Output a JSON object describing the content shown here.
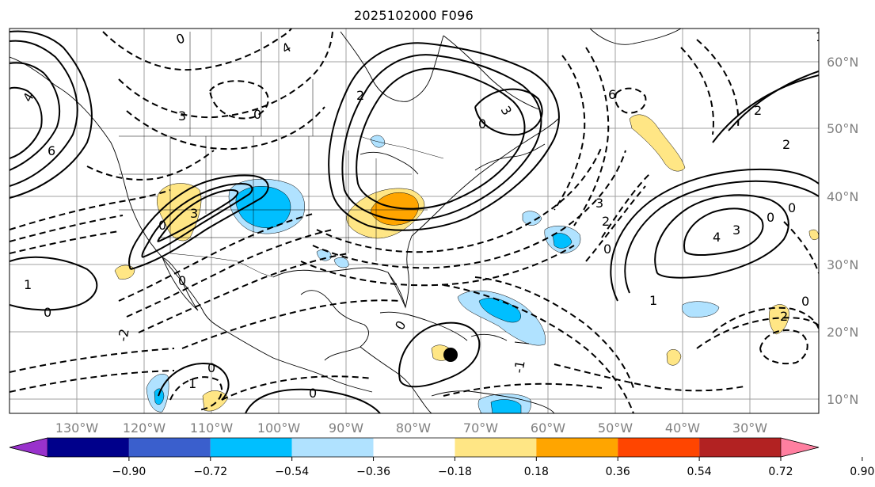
{
  "title": "2025102000 F096",
  "map": {
    "lon_labels": [
      "130°W",
      "120°W",
      "110°W",
      "100°W",
      "90°W",
      "80°W",
      "70°W",
      "60°W",
      "50°W",
      "40°W",
      "30°W"
    ],
    "lat_labels": [
      "60°N",
      "50°N",
      "40°N",
      "30°N",
      "20°N",
      "10°N"
    ],
    "label_color": "#808080",
    "marker": {
      "name": "storm-center-marker",
      "color": "#000000"
    },
    "contour_labels": [
      "0",
      "1",
      "2",
      "3",
      "4",
      "6",
      "-1",
      "-2"
    ]
  },
  "colorbar": {
    "ticks": [
      "−0.90",
      "−0.72",
      "−0.54",
      "−0.36",
      "−0.18",
      "0.18",
      "0.36",
      "0.54",
      "0.72",
      "0.90"
    ],
    "colors": [
      "#9932cc",
      "#00008b",
      "#3a5fcd",
      "#00bfff",
      "#b0e2ff",
      "#ffffff",
      "#ffe685",
      "#ffa500",
      "#ff4500",
      "#b22222",
      "#ff7fa0"
    ]
  }
}
